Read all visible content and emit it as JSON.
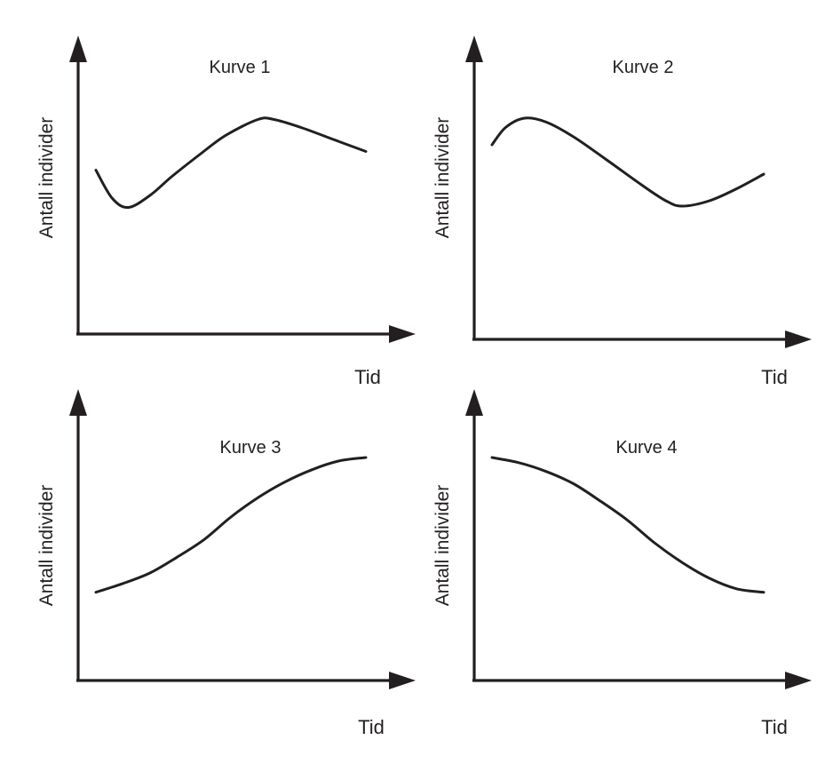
{
  "chart_data": [
    {
      "type": "line",
      "title": "Kurve 1",
      "xlabel": "Tid",
      "ylabel": "Antall individer",
      "ylim": [
        0,
        100
      ],
      "series": [
        {
          "values": [
            [
              0.0,
              61
            ],
            [
              0.06,
              40
            ],
            [
              0.12,
              33
            ],
            [
              0.2,
              42
            ],
            [
              0.28,
              56
            ],
            [
              0.38,
              72
            ],
            [
              0.48,
              87
            ],
            [
              0.6,
              99
            ],
            [
              0.66,
              99
            ],
            [
              0.76,
              93
            ],
            [
              0.88,
              84
            ],
            [
              1.0,
              75
            ]
          ]
        }
      ]
    },
    {
      "type": "line",
      "title": "Kurve 2",
      "xlabel": "Tid",
      "ylabel": "Antall individer",
      "ylim": [
        0,
        100
      ],
      "series": [
        {
          "values": [
            [
              0.0,
              80
            ],
            [
              0.05,
              93
            ],
            [
              0.12,
              100
            ],
            [
              0.2,
              97
            ],
            [
              0.3,
              86
            ],
            [
              0.42,
              69
            ],
            [
              0.55,
              50
            ],
            [
              0.64,
              38
            ],
            [
              0.7,
              34
            ],
            [
              0.8,
              38
            ],
            [
              0.9,
              47
            ],
            [
              1.0,
              58
            ]
          ]
        }
      ]
    },
    {
      "type": "line",
      "title": "Kurve 3",
      "xlabel": "Tid",
      "ylabel": "Antall individer",
      "ylim": [
        0,
        100
      ],
      "series": [
        {
          "values": [
            [
              0.0,
              23
            ],
            [
              0.1,
              28
            ],
            [
              0.2,
              34
            ],
            [
              0.3,
              43
            ],
            [
              0.4,
              53
            ],
            [
              0.5,
              66
            ],
            [
              0.6,
              77
            ],
            [
              0.7,
              86
            ],
            [
              0.8,
              93
            ],
            [
              0.9,
              98
            ],
            [
              1.0,
              100
            ]
          ]
        }
      ]
    },
    {
      "type": "line",
      "title": "Kurve 4",
      "xlabel": "Tid",
      "ylabel": "Antall individer",
      "ylim": [
        0,
        100
      ],
      "series": [
        {
          "values": [
            [
              0.0,
              100
            ],
            [
              0.1,
              97
            ],
            [
              0.2,
              92
            ],
            [
              0.3,
              85
            ],
            [
              0.4,
              75
            ],
            [
              0.5,
              64
            ],
            [
              0.6,
              51
            ],
            [
              0.7,
              40
            ],
            [
              0.8,
              31
            ],
            [
              0.9,
              25
            ],
            [
              1.0,
              23
            ]
          ]
        }
      ]
    }
  ]
}
